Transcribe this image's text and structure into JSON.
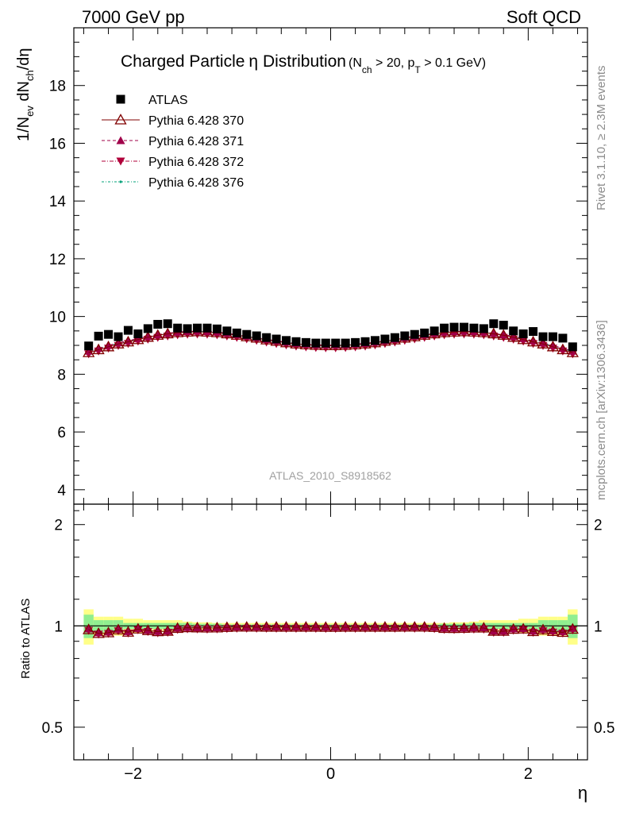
{
  "header": {
    "left": "7000 GeV pp",
    "right": "Soft QCD"
  },
  "side_labels": {
    "rivet": "Rivet 3.1.10, ≥ 2.3M events",
    "mcplots": "mcplots.cern.ch [arXiv:1306.3436]"
  },
  "title": {
    "main": "Charged Particle",
    "eta": "η",
    "dist": " Distribution",
    "cut_open": "(N",
    "cut_ch": "ch",
    "cut_mid": " > 20, p",
    "cut_T": "T",
    "cut_end": " > 0.1 GeV)"
  },
  "ylabel_top": {
    "p1": "1/N",
    "ev": "ev",
    "p2": " dN",
    "ch": "ch",
    "p3": "/dη"
  },
  "ylabel_bottom": "Ratio to ATLAS",
  "xlabel": "η",
  "watermark": "ATLAS_2010_S8918562",
  "colors": {
    "atlas": "#000000",
    "py370": "#800000",
    "py371": "#a0004a",
    "py372": "#b0003a",
    "py376": "#00a078",
    "band_inner": "#90ee90",
    "band_outer": "#ffff88"
  },
  "chart_data": {
    "type": "scatter",
    "x_range": [
      -2.6,
      2.6
    ],
    "ylim_top": [
      3.5,
      20.0
    ],
    "ylim_ratio": [
      0.4,
      2.3
    ],
    "y_ticks_top": [
      4,
      6,
      8,
      10,
      12,
      14,
      16,
      18
    ],
    "y_ticks_ratio": [
      0.5,
      1,
      2
    ],
    "y_tick_labels_ratio": [
      "0.5",
      "1",
      "2"
    ],
    "x_ticks": [
      -2,
      0,
      2
    ],
    "x_tick_labels": [
      "−2",
      "0",
      "2"
    ],
    "legend": [
      {
        "name": "ATLAS",
        "marker": "square"
      },
      {
        "name": "Pythia 6.428 370",
        "marker": "open-triangle-up"
      },
      {
        "name": "Pythia 6.428 371",
        "marker": "triangle-up"
      },
      {
        "name": "Pythia 6.428 372",
        "marker": "triangle-down"
      },
      {
        "name": "Pythia 6.428 376",
        "marker": "dot"
      }
    ],
    "x": [
      -2.45,
      -2.35,
      -2.25,
      -2.15,
      -2.05,
      -1.95,
      -1.85,
      -1.75,
      -1.65,
      -1.55,
      -1.45,
      -1.35,
      -1.25,
      -1.15,
      -1.05,
      -0.95,
      -0.85,
      -0.75,
      -0.65,
      -0.55,
      -0.45,
      -0.35,
      -0.25,
      -0.15,
      -0.05,
      0.05,
      0.15,
      0.25,
      0.35,
      0.45,
      0.55,
      0.65,
      0.75,
      0.85,
      0.95,
      1.05,
      1.15,
      1.25,
      1.35,
      1.45,
      1.55,
      1.65,
      1.75,
      1.85,
      1.95,
      2.05,
      2.15,
      2.25,
      2.35,
      2.45
    ],
    "series": [
      {
        "name": "ATLAS",
        "values": [
          8.98,
          9.32,
          9.38,
          9.3,
          9.52,
          9.4,
          9.58,
          9.73,
          9.75,
          9.6,
          9.58,
          9.6,
          9.6,
          9.57,
          9.5,
          9.43,
          9.38,
          9.33,
          9.27,
          9.22,
          9.17,
          9.13,
          9.1,
          9.08,
          9.08,
          9.08,
          9.08,
          9.1,
          9.13,
          9.17,
          9.22,
          9.27,
          9.33,
          9.38,
          9.43,
          9.5,
          9.6,
          9.63,
          9.63,
          9.6,
          9.58,
          9.75,
          9.7,
          9.5,
          9.4,
          9.48,
          9.3,
          9.3,
          9.25,
          8.95
        ],
        "ratio_unc_inner": [
          0.08,
          0.04,
          0.04,
          0.04,
          0.02,
          0.02,
          0.02,
          0.02,
          0.02,
          0.02,
          0.02,
          0.015,
          0.015,
          0.015,
          0.01,
          0.01,
          0.01,
          0.01,
          0.01,
          0.01,
          0.01,
          0.01,
          0.01,
          0.01,
          0.01,
          0.01,
          0.01,
          0.01,
          0.01,
          0.01,
          0.01,
          0.01,
          0.01,
          0.01,
          0.01,
          0.01,
          0.015,
          0.015,
          0.015,
          0.02,
          0.02,
          0.02,
          0.02,
          0.02,
          0.02,
          0.02,
          0.04,
          0.04,
          0.04,
          0.08
        ],
        "ratio_unc_outer": [
          0.12,
          0.065,
          0.065,
          0.065,
          0.05,
          0.05,
          0.04,
          0.04,
          0.04,
          0.04,
          0.03,
          0.025,
          0.025,
          0.02,
          0.02,
          0.02,
          0.02,
          0.02,
          0.02,
          0.02,
          0.02,
          0.02,
          0.02,
          0.02,
          0.02,
          0.02,
          0.02,
          0.02,
          0.02,
          0.02,
          0.02,
          0.02,
          0.02,
          0.02,
          0.02,
          0.02,
          0.02,
          0.025,
          0.025,
          0.03,
          0.04,
          0.04,
          0.04,
          0.04,
          0.05,
          0.05,
          0.065,
          0.065,
          0.065,
          0.12
        ]
      },
      {
        "name": "Pythia 6.428 370",
        "values": [
          8.75,
          8.85,
          8.95,
          9.05,
          9.12,
          9.2,
          9.28,
          9.35,
          9.4,
          9.44,
          9.46,
          9.47,
          9.46,
          9.44,
          9.4,
          9.35,
          9.3,
          9.25,
          9.19,
          9.14,
          9.09,
          9.05,
          9.02,
          9.0,
          8.99,
          8.99,
          9.0,
          9.02,
          9.05,
          9.09,
          9.14,
          9.19,
          9.25,
          9.3,
          9.35,
          9.4,
          9.44,
          9.46,
          9.47,
          9.46,
          9.44,
          9.4,
          9.35,
          9.28,
          9.2,
          9.12,
          9.05,
          8.95,
          8.85,
          8.75
        ]
      },
      {
        "name": "Pythia 6.428 371",
        "values": [
          8.8,
          8.9,
          9.0,
          9.09,
          9.16,
          9.24,
          9.31,
          9.37,
          9.42,
          9.46,
          9.48,
          9.49,
          9.48,
          9.46,
          9.42,
          9.37,
          9.32,
          9.27,
          9.21,
          9.16,
          9.11,
          9.07,
          9.04,
          9.02,
          9.01,
          9.01,
          9.02,
          9.04,
          9.07,
          9.11,
          9.16,
          9.21,
          9.27,
          9.32,
          9.37,
          9.42,
          9.46,
          9.48,
          9.49,
          9.48,
          9.46,
          9.42,
          9.37,
          9.31,
          9.24,
          9.16,
          9.09,
          9.0,
          8.9,
          8.8
        ]
      },
      {
        "name": "Pythia 6.428 372",
        "values": [
          8.7,
          8.8,
          8.9,
          8.99,
          9.06,
          9.14,
          9.21,
          9.27,
          9.32,
          9.36,
          9.38,
          9.39,
          9.38,
          9.36,
          9.32,
          9.27,
          9.22,
          9.17,
          9.11,
          9.06,
          9.01,
          8.97,
          8.94,
          8.92,
          8.91,
          8.91,
          8.92,
          8.94,
          8.97,
          9.01,
          9.06,
          9.11,
          9.17,
          9.22,
          9.27,
          9.32,
          9.36,
          9.38,
          9.39,
          9.38,
          9.36,
          9.32,
          9.27,
          9.21,
          9.14,
          9.06,
          8.99,
          8.9,
          8.8,
          8.7
        ]
      },
      {
        "name": "Pythia 6.428 376",
        "values": [
          8.78,
          8.88,
          8.98,
          9.07,
          9.14,
          9.22,
          9.29,
          9.36,
          9.41,
          9.45,
          9.47,
          9.48,
          9.47,
          9.45,
          9.41,
          9.36,
          9.31,
          9.26,
          9.2,
          9.15,
          9.1,
          9.06,
          9.03,
          9.01,
          9.0,
          9.0,
          9.01,
          9.03,
          9.06,
          9.1,
          9.15,
          9.2,
          9.26,
          9.31,
          9.36,
          9.41,
          9.45,
          9.47,
          9.48,
          9.47,
          9.45,
          9.41,
          9.36,
          9.29,
          9.22,
          9.14,
          9.07,
          8.98,
          8.88,
          8.78
        ]
      }
    ]
  }
}
